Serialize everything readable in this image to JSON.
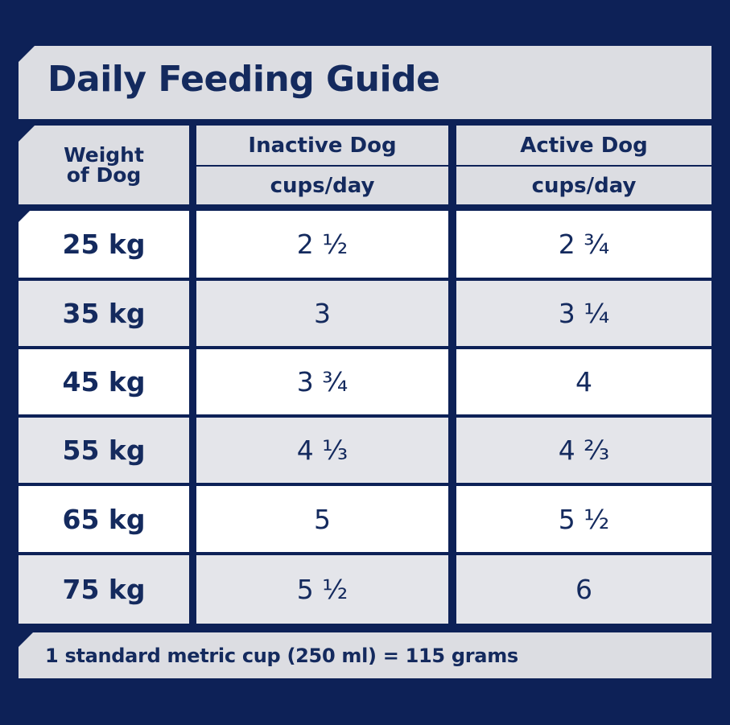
{
  "title": "Daily Feeding Guide",
  "header": {
    "weight_line1": "Weight",
    "weight_line2": "of Dog",
    "inactive": "Inactive Dog",
    "active": "Active Dog",
    "unit_inactive": "cups/day",
    "unit_active": "cups/day"
  },
  "rows": [
    {
      "weight": "25 kg",
      "inactive": "2 ½",
      "active": "2 ¾"
    },
    {
      "weight": "35 kg",
      "inactive": "3",
      "active": "3 ¼"
    },
    {
      "weight": "45 kg",
      "inactive": "3 ¾",
      "active": "4"
    },
    {
      "weight": "55 kg",
      "inactive": "4 ⅓",
      "active": "4 ⅔"
    },
    {
      "weight": "65 kg",
      "inactive": "5",
      "active": "5 ½"
    },
    {
      "weight": "75 kg",
      "inactive": "5 ½",
      "active": "6"
    }
  ],
  "footer": "1 standard metric cup (250 ml) = 115 grams",
  "colors": {
    "background": "#0d2157",
    "panel_grey": "#dcdde2",
    "row_white": "#ffffff",
    "row_grey": "#e4e5ea",
    "text": "#142a5e"
  }
}
